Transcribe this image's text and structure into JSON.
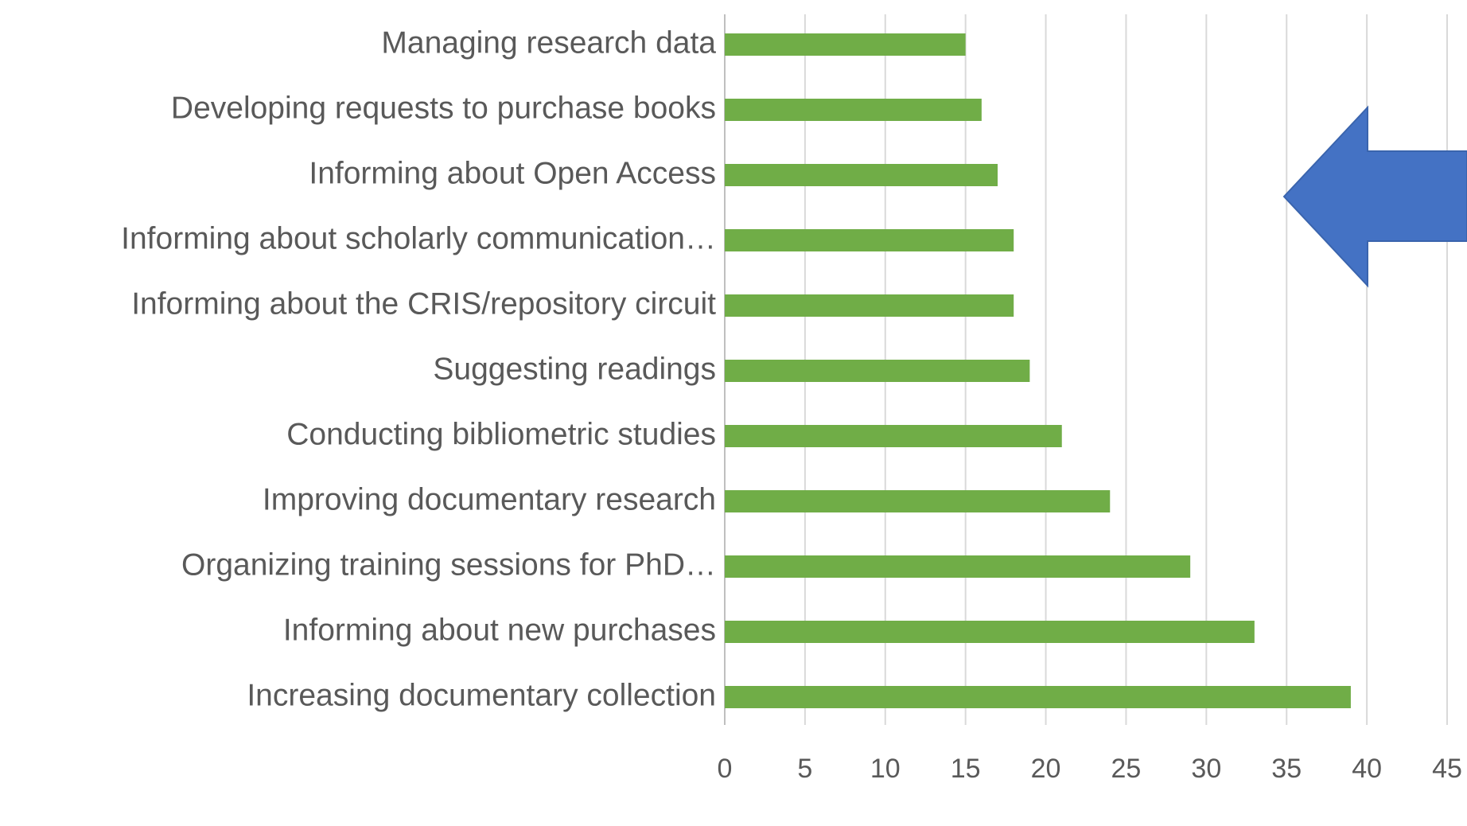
{
  "chart_data": {
    "type": "bar",
    "orientation": "horizontal",
    "categories": [
      "Managing research data",
      "Developing requests to purchase books",
      "Informing about Open Access",
      "Informing about scholarly communication…",
      "Informing about the CRIS/repository circuit",
      "Suggesting readings",
      "Conducting bibliometric studies",
      "Improving documentary research",
      "Organizing training sessions for PhD…",
      "Informing about new purchases",
      "Increasing documentary collection"
    ],
    "values": [
      15,
      16,
      17,
      18,
      18,
      19,
      21,
      24,
      29,
      33,
      39
    ],
    "color": "#70ad47",
    "xlim": [
      0,
      45
    ],
    "xticks": [
      0,
      5,
      10,
      15,
      20,
      25,
      30,
      35,
      40,
      45
    ],
    "grid": true
  }
}
